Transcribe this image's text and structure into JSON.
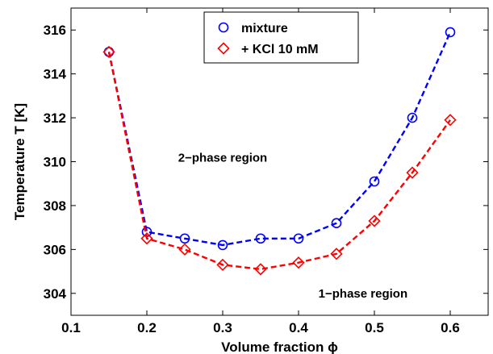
{
  "chart_data": {
    "type": "line",
    "xlabel": "Volume fraction ϕ",
    "ylabel": "Temperature T [K]",
    "xlim": [
      0.1,
      0.65
    ],
    "ylim": [
      303,
      317
    ],
    "x_ticks": [
      "0.1",
      "0.2",
      "0.3",
      "0.4",
      "0.5",
      "0.6"
    ],
    "y_ticks": [
      "304",
      "306",
      "308",
      "310",
      "312",
      "314",
      "316"
    ],
    "x_tick_values": [
      0.1,
      0.2,
      0.3,
      0.4,
      0.5,
      0.6
    ],
    "y_tick_values": [
      304,
      306,
      308,
      310,
      312,
      314,
      316
    ],
    "grid": false,
    "legend_position": "top-center",
    "annotations": [
      {
        "text": "2−phase region",
        "x": 0.3,
        "y": 310.0
      },
      {
        "text": "1−phase region",
        "x": 0.485,
        "y": 303.8
      }
    ],
    "x": [
      0.15,
      0.2,
      0.25,
      0.3,
      0.35,
      0.4,
      0.45,
      0.5,
      0.55,
      0.6
    ],
    "series": [
      {
        "name": "mixture",
        "marker": "circle",
        "color": "#0000ff",
        "values": [
          315.0,
          306.8,
          306.5,
          306.2,
          306.5,
          306.5,
          307.2,
          309.1,
          312.0,
          315.9
        ]
      },
      {
        "name": "+ KCl 10 mM",
        "marker": "diamond",
        "color": "#ff0000",
        "values": [
          315.0,
          306.5,
          306.0,
          305.3,
          305.1,
          305.4,
          305.8,
          307.3,
          309.5,
          311.9
        ]
      }
    ]
  }
}
